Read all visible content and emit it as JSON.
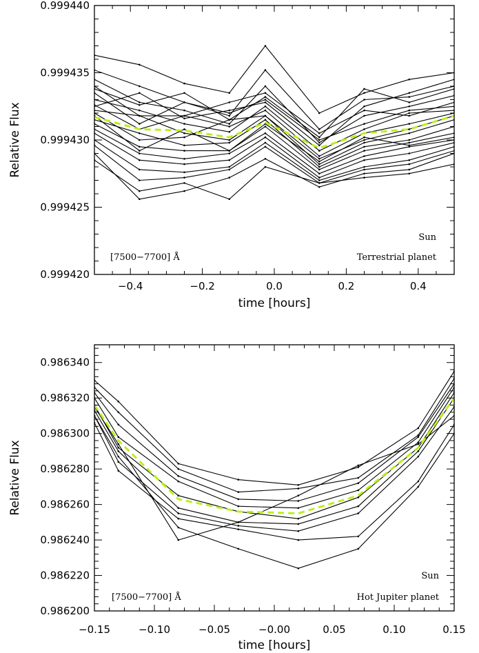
{
  "chart_data": [
    {
      "type": "line",
      "xlabel": "time [hours]",
      "ylabel": "Relative Flux",
      "xlim": [
        -0.5,
        0.5
      ],
      "ylim": [
        0.99942,
        0.99944
      ],
      "xticks": [
        -0.4,
        -0.2,
        0.0,
        0.2,
        0.4
      ],
      "xtick_labels": [
        "−0.4",
        "−0.2",
        "0.0",
        "0.2",
        "0.4"
      ],
      "yticks": [
        0.99942,
        0.999425,
        0.99943,
        0.999435,
        0.99944
      ],
      "ytick_labels": [
        "0.999420",
        "0.999425",
        "0.999430",
        "0.999435",
        "0.999440"
      ],
      "annotations": {
        "band": "[7500−7700] Å",
        "star": "Sun",
        "planet": "Terrestrial planet"
      },
      "x": [
        -0.5,
        -0.375,
        -0.25,
        -0.125,
        -0.025,
        0.125,
        0.25,
        0.375,
        0.5
      ],
      "mean_color": "#b8f01e",
      "mean": [
        0.9994317,
        0.9994308,
        0.9994307,
        0.9994302,
        0.9994313,
        0.9994294,
        0.9994305,
        0.9994308,
        0.9994318
      ],
      "series": [
        {
          "values": [
            0.9994363,
            0.9994356,
            0.9994342,
            0.9994335,
            0.999437,
            0.999432,
            0.9994335,
            0.9994345,
            0.999435
          ]
        },
        {
          "values": [
            0.9994352,
            0.999434,
            0.9994328,
            0.9994318,
            0.9994352,
            0.9994308,
            0.999433,
            0.9994332,
            0.999434
          ]
        },
        {
          "values": [
            0.9994345,
            0.9994328,
            0.9994322,
            0.9994312,
            0.999434,
            0.9994298,
            0.9994318,
            0.9994325,
            0.9994333
          ]
        },
        {
          "values": [
            0.999434,
            0.9994318,
            0.9994318,
            0.9994328,
            0.9994335,
            0.9994305,
            0.9994322,
            0.9994318,
            0.9994328
          ]
        },
        {
          "values": [
            0.9994335,
            0.9994312,
            0.9994328,
            0.999432,
            0.999433,
            0.99943,
            0.9994312,
            0.9994322,
            0.9994325
          ]
        },
        {
          "values": [
            0.999433,
            0.9994322,
            0.9994312,
            0.9994306,
            0.9994325,
            0.9994292,
            0.9994308,
            0.999432,
            0.9994322
          ]
        },
        {
          "values": [
            0.9994326,
            0.9994308,
            0.9994318,
            0.999431,
            0.9994322,
            0.9994288,
            0.9994305,
            0.9994312,
            0.999432
          ]
        },
        {
          "values": [
            0.9994322,
            0.9994318,
            0.9994305,
            0.99943,
            0.9994318,
            0.9994286,
            0.99943,
            0.9994308,
            0.9994318
          ]
        },
        {
          "values": [
            0.999432,
            0.99943,
            0.9994302,
            0.9994315,
            0.9994318,
            0.9994282,
            0.9994298,
            0.9994305,
            0.9994315
          ]
        },
        {
          "values": [
            0.9994315,
            0.9994305,
            0.9994296,
            0.9994298,
            0.9994315,
            0.999428,
            0.9994295,
            0.99943,
            0.999431
          ]
        },
        {
          "values": [
            0.9994312,
            0.9994295,
            0.9994292,
            0.9994292,
            0.999431,
            0.9994278,
            0.9994292,
            0.9994298,
            0.9994305
          ]
        },
        {
          "values": [
            0.9994308,
            0.999429,
            0.9994286,
            0.999429,
            0.9994305,
            0.9994275,
            0.9994288,
            0.9994295,
            0.99943
          ]
        },
        {
          "values": [
            0.9994305,
            0.9994285,
            0.9994282,
            0.9994285,
            0.9994302,
            0.9994272,
            0.9994285,
            0.999429,
            0.9994298
          ]
        },
        {
          "values": [
            0.99943,
            0.9994278,
            0.9994276,
            0.999428,
            0.9994298,
            0.999427,
            0.999428,
            0.9994285,
            0.9994295
          ]
        },
        {
          "values": [
            0.9994296,
            0.999427,
            0.9994272,
            0.9994278,
            0.9994295,
            0.9994268,
            0.9994278,
            0.9994282,
            0.9994292
          ]
        },
        {
          "values": [
            0.999429,
            0.9994256,
            0.9994262,
            0.9994272,
            0.9994286,
            0.9994265,
            0.9994275,
            0.9994278,
            0.999429
          ]
        },
        {
          "values": [
            0.9994285,
            0.9994262,
            0.9994268,
            0.9994256,
            0.999428,
            0.9994268,
            0.9994272,
            0.9994275,
            0.9994282
          ]
        },
        {
          "values": [
            0.9994325,
            0.9994335,
            0.9994316,
            0.9994322,
            0.9994328,
            0.9994296,
            0.9994325,
            0.9994335,
            0.9994345
          ]
        },
        {
          "values": [
            0.9994338,
            0.9994326,
            0.9994335,
            0.9994315,
            0.9994332,
            0.9994302,
            0.9994338,
            0.9994328,
            0.9994338
          ]
        },
        {
          "values": [
            0.9994318,
            0.9994292,
            0.9994308,
            0.9994292,
            0.9994312,
            0.9994284,
            0.9994302,
            0.9994296,
            0.9994302
          ]
        }
      ]
    },
    {
      "type": "line",
      "xlabel": "time [hours]",
      "ylabel": "Relative Flux",
      "xlim": [
        -0.15,
        0.15
      ],
      "ylim": [
        0.9862,
        0.98635
      ],
      "xticks": [
        -0.15,
        -0.1,
        -0.05,
        0.0,
        0.05,
        0.1,
        0.15
      ],
      "xtick_labels": [
        "−0.15",
        "−0.10",
        "−0.05",
        "−0.00",
        "0.05",
        "0.10",
        "0.15"
      ],
      "yticks": [
        0.9862,
        0.98622,
        0.98624,
        0.98626,
        0.98628,
        0.9863,
        0.98632,
        0.98634
      ],
      "ytick_labels": [
        "0.986200",
        "0.986220",
        "0.986240",
        "0.986260",
        "0.986280",
        "0.986300",
        "0.986320",
        "0.986340"
      ],
      "annotations": {
        "band": "[7500−7700] Å",
        "star": "Sun",
        "planet": "Hot Jupiter planet"
      },
      "x": [
        -0.15,
        -0.13,
        -0.08,
        -0.03,
        0.02,
        0.07,
        0.12,
        0.15
      ],
      "mean_color": "#b8f01e",
      "mean_x": [
        -0.15,
        -0.13,
        -0.08,
        -0.03,
        0.02,
        0.07,
        0.12,
        0.15
      ],
      "mean": [
        0.986316,
        0.986296,
        0.986263,
        0.986256,
        0.986255,
        0.986265,
        0.986292,
        0.98632
      ],
      "series": [
        {
          "values": [
            0.98633,
            0.986318,
            0.986283,
            0.986274,
            0.986271,
            0.986281,
            0.986303,
            0.986335
          ]
        },
        {
          "values": [
            0.986326,
            0.986312,
            0.98628,
            0.986267,
            0.986269,
            0.986275,
            0.986299,
            0.986331
          ]
        },
        {
          "values": [
            0.986323,
            0.986305,
            0.986276,
            0.986263,
            0.986262,
            0.986272,
            0.986298,
            0.986328
          ]
        },
        {
          "values": [
            0.98632,
            0.986298,
            0.986273,
            0.986259,
            0.986258,
            0.986268,
            0.986295,
            0.986326
          ]
        },
        {
          "values": [
            0.986316,
            0.986292,
            0.986265,
            0.986256,
            0.986252,
            0.986264,
            0.986292,
            0.986323
          ]
        },
        {
          "values": [
            0.986313,
            0.98629,
            0.986258,
            0.98625,
            0.986249,
            0.986259,
            0.98629,
            0.98632
          ]
        },
        {
          "values": [
            0.98631,
            0.986284,
            0.986255,
            0.986248,
            0.986245,
            0.986255,
            0.986287,
            0.986315
          ]
        },
        {
          "values": [
            0.986306,
            0.986279,
            0.986252,
            0.986246,
            0.98624,
            0.986242,
            0.986273,
            0.986305
          ]
        },
        {
          "values": [
            0.98631,
            0.986287,
            0.986247,
            0.986235,
            0.986224,
            0.986235,
            0.98627,
            0.9863
          ]
        },
        {
          "values": [
            0.986315,
            0.986294,
            0.98624,
            0.98625,
            0.986265,
            0.986282,
            0.986294,
            0.98631
          ]
        }
      ]
    }
  ]
}
